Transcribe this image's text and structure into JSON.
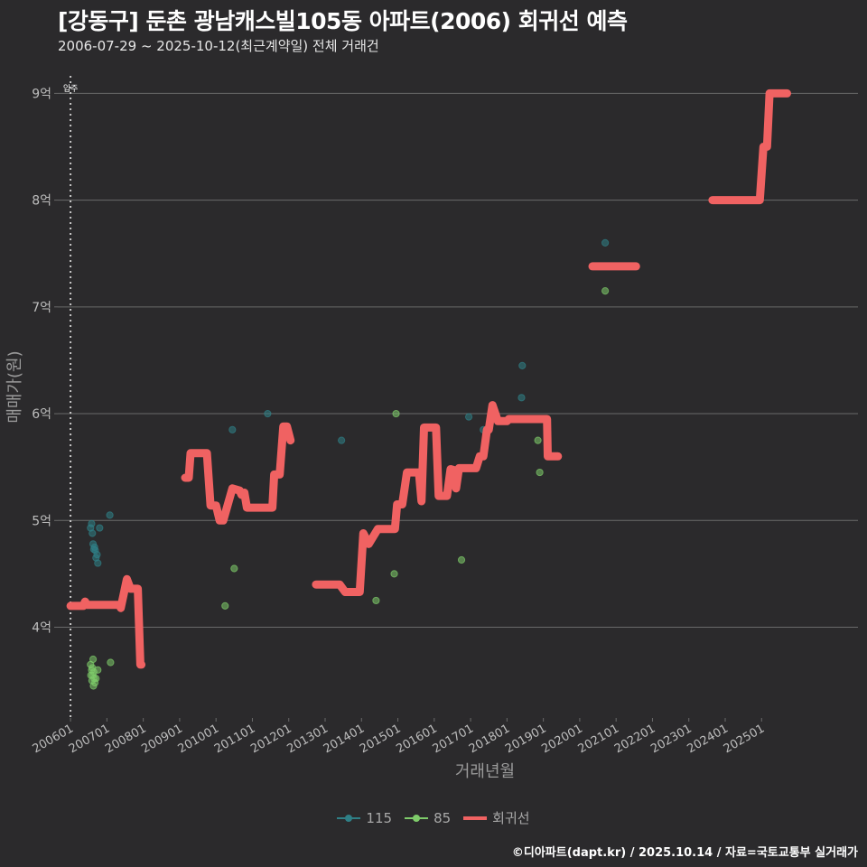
{
  "header": {
    "title": "[강동구] 둔촌 광남캐스빌105동 아파트(2006) 회귀선 예측",
    "subtitle": "2006-07-29 ~ 2025-10-12(최근계약일) 전체 거래건"
  },
  "credit": "©디아파트(dapt.kr) / 2025.10.14 / 자료=국토교통부 실거래가",
  "colors": {
    "background": "#2b2a2c",
    "grid": "#6a6a6a",
    "series_115": "#2f7f86",
    "series_85": "#7ecb6a",
    "regression": "#f06262"
  },
  "chart_data": {
    "type": "scatter",
    "xlabel": "거래년월",
    "ylabel": "매매가(원)",
    "x_unit": "decimal year",
    "xlim": [
      2005.65,
      2027.65
    ],
    "ylim": [
      3.15,
      9.35
    ],
    "x_ticks": [
      {
        "x": 2006.0,
        "label": "200601"
      },
      {
        "x": 2007.0,
        "label": "200701"
      },
      {
        "x": 2008.0,
        "label": "200801"
      },
      {
        "x": 2009.0,
        "label": "200901"
      },
      {
        "x": 2010.0,
        "label": "201001"
      },
      {
        "x": 2011.0,
        "label": "201101"
      },
      {
        "x": 2012.0,
        "label": "201201"
      },
      {
        "x": 2013.0,
        "label": "201301"
      },
      {
        "x": 2014.0,
        "label": "201401"
      },
      {
        "x": 2015.0,
        "label": "201501"
      },
      {
        "x": 2016.0,
        "label": "201601"
      },
      {
        "x": 2017.0,
        "label": "201701"
      },
      {
        "x": 2018.0,
        "label": "201801"
      },
      {
        "x": 2019.0,
        "label": "201901"
      },
      {
        "x": 2020.0,
        "label": "202001"
      },
      {
        "x": 2021.0,
        "label": "202101"
      },
      {
        "x": 2022.0,
        "label": "202201"
      },
      {
        "x": 2023.0,
        "label": "202301"
      },
      {
        "x": 2024.0,
        "label": "202401"
      },
      {
        "x": 2025.0,
        "label": "202501"
      }
    ],
    "y_ticks": [
      {
        "y": 4,
        "label": "4억"
      },
      {
        "y": 5,
        "label": "5억"
      },
      {
        "y": 6,
        "label": "6억"
      },
      {
        "y": 7,
        "label": "7억"
      },
      {
        "y": 8,
        "label": "8억"
      },
      {
        "y": 9,
        "label": "9억"
      }
    ],
    "annotation": {
      "x": 2006.0,
      "label": "입주"
    },
    "legend": [
      {
        "key": "115",
        "label": "115"
      },
      {
        "key": "85",
        "label": "85"
      },
      {
        "key": "reg",
        "label": "회귀선"
      }
    ],
    "series": [
      {
        "name": "115",
        "points": [
          [
            2006.55,
            4.93
          ],
          [
            2006.58,
            4.97
          ],
          [
            2006.6,
            4.88
          ],
          [
            2006.62,
            4.78
          ],
          [
            2006.64,
            4.73
          ],
          [
            2006.66,
            4.75
          ],
          [
            2006.68,
            4.72
          ],
          [
            2006.7,
            4.65
          ],
          [
            2006.73,
            4.68
          ],
          [
            2006.75,
            4.6
          ],
          [
            2006.8,
            4.93
          ],
          [
            2007.08,
            5.05
          ],
          [
            2011.42,
            6.0
          ],
          [
            2013.45,
            5.75
          ],
          [
            2010.45,
            5.85
          ],
          [
            2016.95,
            5.97
          ],
          [
            2017.35,
            5.85
          ],
          [
            2018.4,
            6.15
          ],
          [
            2018.42,
            6.45
          ],
          [
            2020.7,
            7.6
          ]
        ]
      },
      {
        "name": "85",
        "points": [
          [
            2006.55,
            3.65
          ],
          [
            2006.56,
            3.55
          ],
          [
            2006.58,
            3.6
          ],
          [
            2006.59,
            3.5
          ],
          [
            2006.6,
            3.62
          ],
          [
            2006.61,
            3.55
          ],
          [
            2006.62,
            3.7
          ],
          [
            2006.63,
            3.45
          ],
          [
            2006.64,
            3.58
          ],
          [
            2006.65,
            3.52
          ],
          [
            2006.67,
            3.48
          ],
          [
            2006.7,
            3.52
          ],
          [
            2006.75,
            3.6
          ],
          [
            2007.1,
            3.67
          ],
          [
            2010.25,
            4.2
          ],
          [
            2010.5,
            4.55
          ],
          [
            2014.4,
            4.25
          ],
          [
            2014.9,
            4.5
          ],
          [
            2014.95,
            6.0
          ],
          [
            2016.75,
            4.63
          ],
          [
            2018.85,
            5.75
          ],
          [
            2018.9,
            5.45
          ],
          [
            2020.7,
            7.15
          ]
        ]
      }
    ],
    "regression": [
      [
        [
          2006.0,
          4.2
        ],
        [
          2006.35,
          4.2
        ],
        [
          2006.4,
          4.24
        ],
        [
          2006.45,
          4.21
        ],
        [
          2007.35,
          4.21
        ],
        [
          2007.38,
          4.18
        ],
        [
          2007.55,
          4.45
        ],
        [
          2007.65,
          4.36
        ],
        [
          2007.85,
          4.36
        ],
        [
          2007.92,
          3.65
        ],
        [
          2007.95,
          3.65
        ]
      ],
      [
        [
          2009.15,
          5.4
        ],
        [
          2009.25,
          5.4
        ],
        [
          2009.3,
          5.63
        ],
        [
          2009.75,
          5.63
        ],
        [
          2009.85,
          5.14
        ],
        [
          2010.0,
          5.14
        ],
        [
          2010.1,
          5.0
        ],
        [
          2010.2,
          5.0
        ],
        [
          2010.45,
          5.3
        ],
        [
          2010.65,
          5.28
        ],
        [
          2010.7,
          5.24
        ],
        [
          2010.78,
          5.26
        ],
        [
          2010.85,
          5.12
        ],
        [
          2011.55,
          5.12
        ],
        [
          2011.6,
          5.43
        ],
        [
          2011.75,
          5.43
        ],
        [
          2011.85,
          5.88
        ],
        [
          2011.95,
          5.88
        ],
        [
          2012.05,
          5.75
        ]
      ],
      [
        [
          2012.75,
          4.4
        ],
        [
          2013.4,
          4.4
        ],
        [
          2013.55,
          4.33
        ],
        [
          2013.95,
          4.33
        ],
        [
          2014.05,
          4.88
        ],
        [
          2014.2,
          4.78
        ],
        [
          2014.45,
          4.92
        ],
        [
          2014.92,
          4.92
        ],
        [
          2014.98,
          5.15
        ],
        [
          2015.12,
          5.15
        ],
        [
          2015.25,
          5.45
        ],
        [
          2015.58,
          5.45
        ],
        [
          2015.65,
          5.18
        ],
        [
          2015.72,
          5.87
        ],
        [
          2016.05,
          5.87
        ],
        [
          2016.12,
          5.23
        ],
        [
          2016.35,
          5.23
        ],
        [
          2016.45,
          5.48
        ],
        [
          2016.55,
          5.47
        ],
        [
          2016.6,
          5.3
        ],
        [
          2016.68,
          5.49
        ],
        [
          2017.15,
          5.49
        ],
        [
          2017.25,
          5.6
        ],
        [
          2017.35,
          5.6
        ],
        [
          2017.45,
          5.85
        ],
        [
          2017.5,
          5.85
        ],
        [
          2017.6,
          6.08
        ],
        [
          2017.75,
          5.93
        ],
        [
          2018.0,
          5.93
        ],
        [
          2018.05,
          5.95
        ],
        [
          2019.1,
          5.95
        ],
        [
          2019.12,
          5.6
        ],
        [
          2019.4,
          5.6
        ]
      ],
      [
        [
          2020.35,
          7.38
        ],
        [
          2021.55,
          7.38
        ]
      ],
      [
        [
          2023.65,
          8.0
        ],
        [
          2024.95,
          8.0
        ],
        [
          2025.05,
          8.5
        ],
        [
          2025.15,
          8.5
        ],
        [
          2025.22,
          9.0
        ],
        [
          2025.7,
          9.0
        ]
      ]
    ]
  }
}
